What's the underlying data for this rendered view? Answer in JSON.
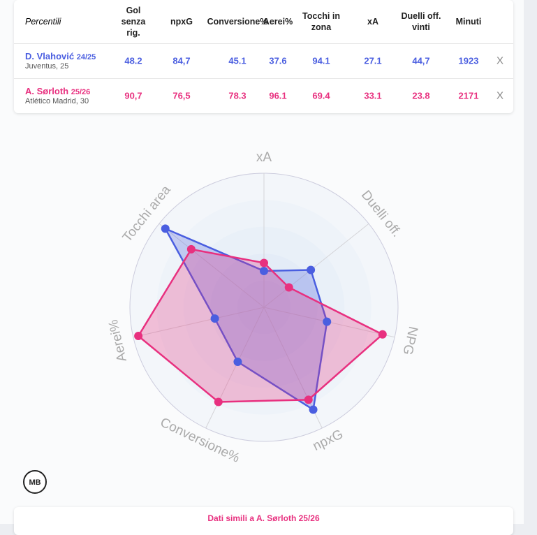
{
  "table": {
    "headers": [
      "Percentili",
      "Gol senza rig.",
      "npxG",
      "Conversione%",
      "Aerei%",
      "Tocchi in zona",
      "xA",
      "Duelli off. vinti",
      "Minuti"
    ],
    "rows": [
      {
        "name": "D. Vlahović",
        "season": "24/25",
        "team": "Juventus, 25",
        "color": "#4a5ee0",
        "values": [
          "48.2",
          "84,7",
          "45.1",
          "37.6",
          "94.1",
          "27.1",
          "44,7",
          "1923"
        ],
        "remove": "X"
      },
      {
        "name": "A. Sørloth",
        "season": "25/26",
        "team": "Atlético Madrid, 30",
        "color": "#e8307f",
        "values": [
          "90,7",
          "76,5",
          "78.3",
          "96.1",
          "69.4",
          "33.1",
          "23.8",
          "2171"
        ],
        "remove": "X"
      }
    ]
  },
  "chart_data": {
    "type": "radar",
    "axes": [
      "xA",
      "Duelli off.",
      "NPG",
      "npxG",
      "Conversione%",
      "Aerei%",
      "Tocchi area"
    ],
    "rlim": [
      0,
      100
    ],
    "rticks": [
      20,
      40,
      60,
      80,
      100
    ],
    "series": [
      {
        "color": "#4a5ee0",
        "values": [
          27.1,
          44.7,
          48.2,
          84.7,
          45.1,
          37.6,
          94.1
        ]
      },
      {
        "color": "#e8307f",
        "values": [
          33.1,
          23.8,
          90.7,
          76.5,
          78.3,
          96.1,
          69.4
        ]
      }
    ]
  },
  "logo": "MB",
  "footer": "Dati simili a A. Sørloth 25/26"
}
